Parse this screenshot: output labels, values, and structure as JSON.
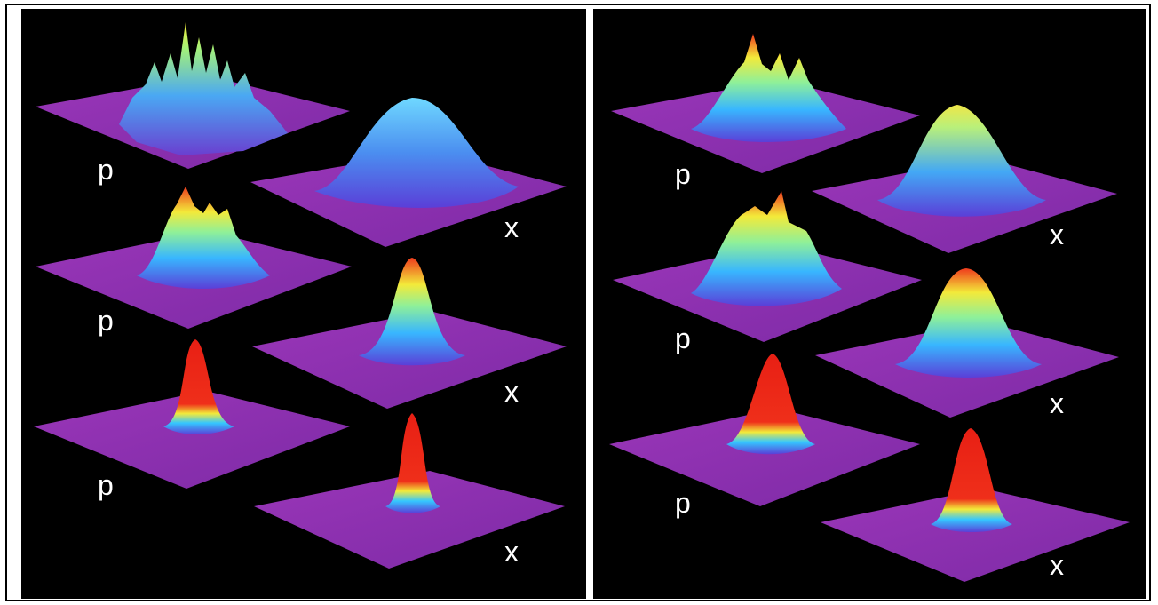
{
  "panels": [
    {
      "id": "left",
      "rows": [
        {
          "p_label": "p",
          "x_label": "x"
        },
        {
          "p_label": "p",
          "x_label": "x"
        },
        {
          "p_label": "p",
          "x_label": "x"
        }
      ]
    },
    {
      "id": "right",
      "rows": [
        {
          "p_label": "p",
          "x_label": "x"
        },
        {
          "p_label": "p",
          "x_label": "x"
        },
        {
          "p_label": "p",
          "x_label": "x"
        }
      ]
    }
  ],
  "colors": {
    "background": "#000000",
    "plane": "#8e2fb2",
    "peak_low": "#4d55e6",
    "peak_mid": "#34c8ff",
    "peak_high": "#f0ee3a",
    "peak_top": "#e8241c"
  }
}
